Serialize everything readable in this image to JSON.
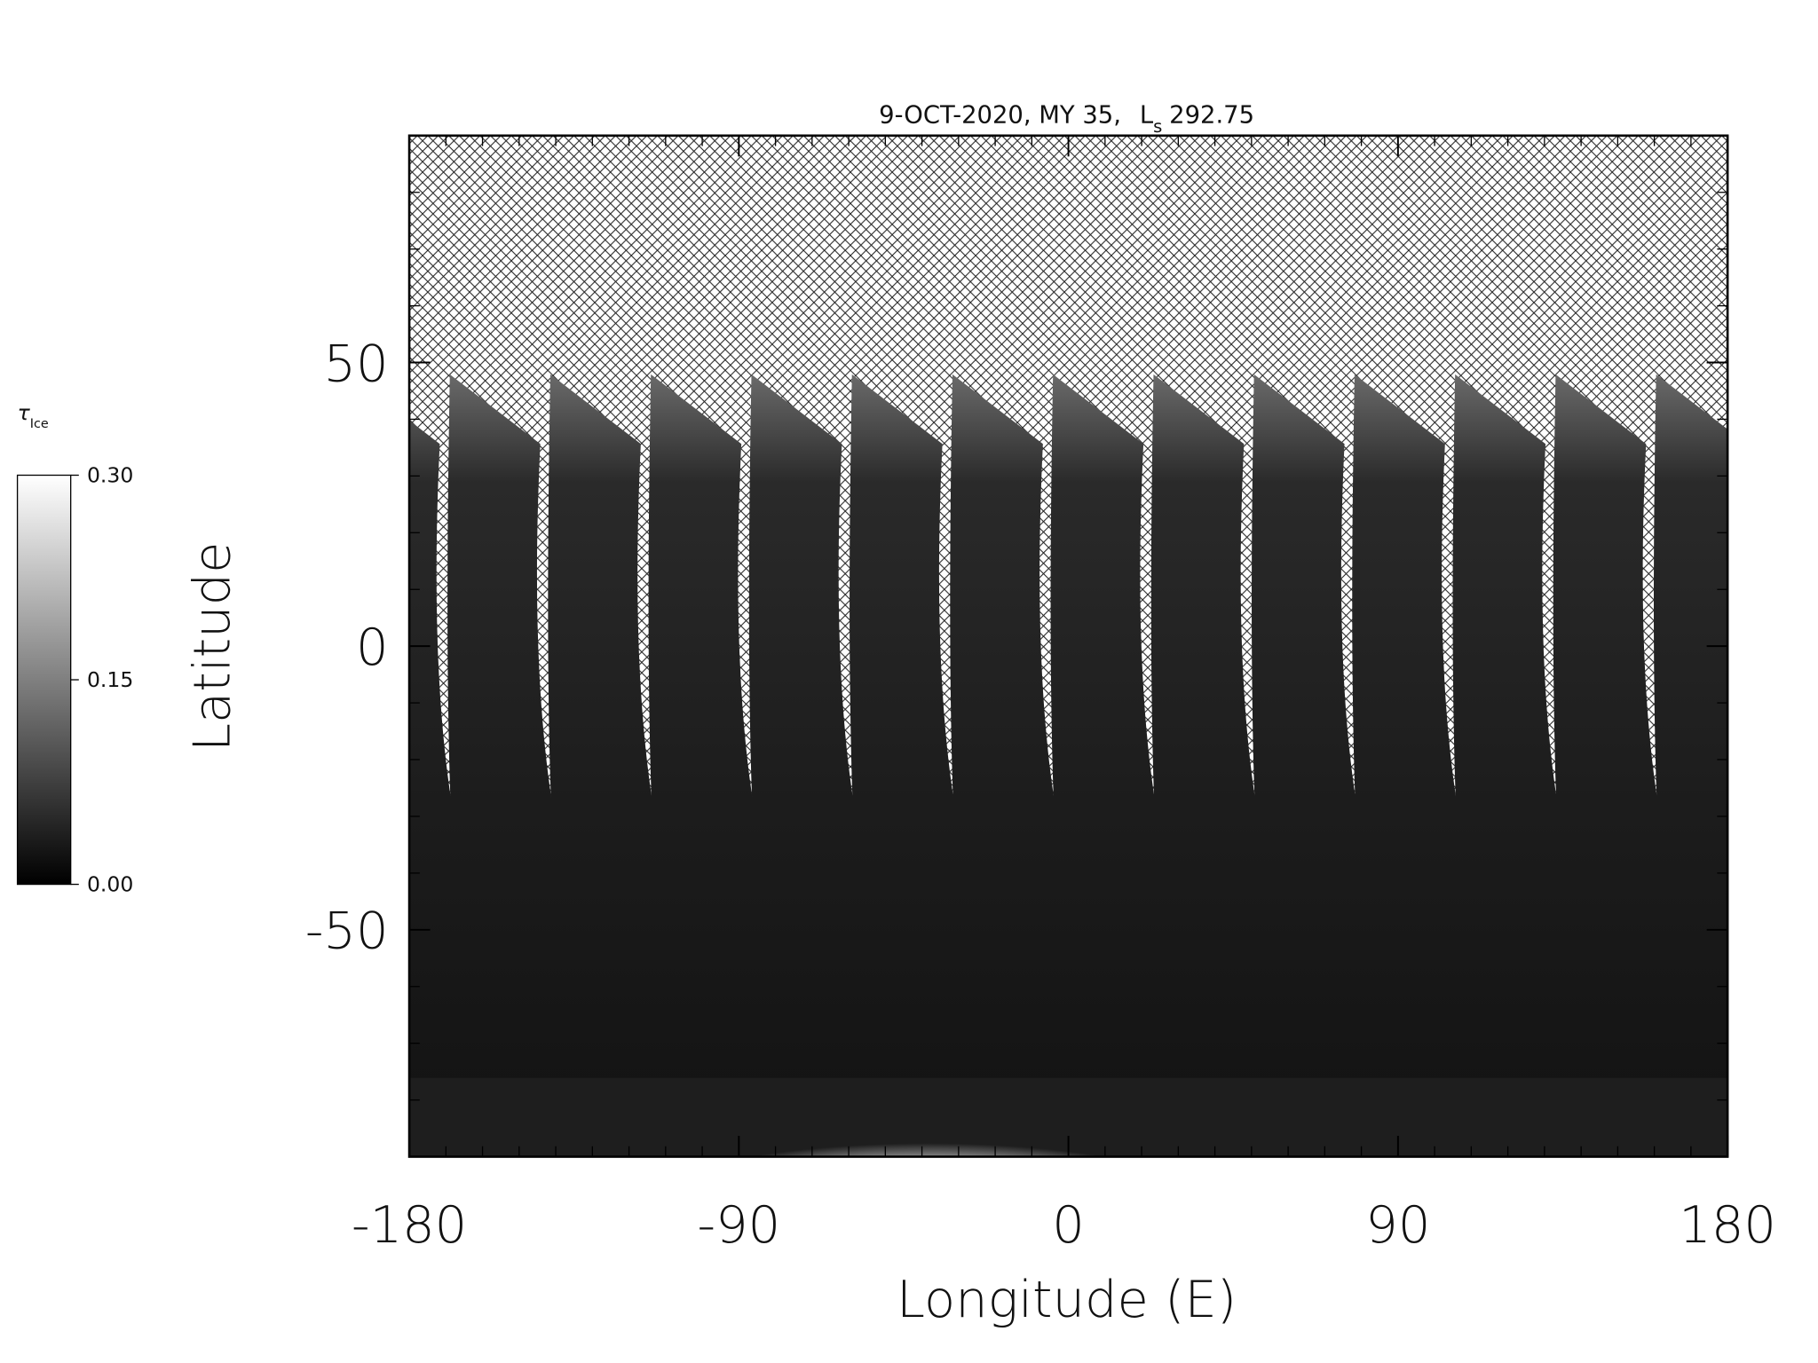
{
  "chart_data": {
    "type": "map",
    "title": "9-OCT-2020, MY 35,",
    "title_ls": "L",
    "title_ls_sub": "s",
    "title_ls_value": "292.75",
    "x_label": "Longitude (E)",
    "y_label": "Latitude",
    "xlim": [
      -180,
      180
    ],
    "xticks": [
      -180,
      -90,
      0,
      90,
      180
    ],
    "x_minor_ticks": [
      -170,
      -160,
      -150,
      -140,
      -130,
      -120,
      -110,
      -100,
      -80,
      -70,
      -60,
      -50,
      -40,
      -30,
      -20,
      -10,
      10,
      20,
      30,
      40,
      50,
      60,
      70,
      80,
      100,
      110,
      120,
      130,
      140,
      150,
      160,
      170
    ],
    "ylim": [
      -90,
      90
    ],
    "yticks": [
      -50,
      0,
      50
    ],
    "y_minor_ticks": [
      -80,
      -70,
      -60,
      -40,
      -30,
      -20,
      -10,
      10,
      20,
      30,
      40,
      60,
      70,
      80
    ],
    "colorbar": {
      "label": "τ",
      "label_sub": "Ice",
      "clim": [
        0,
        0.3
      ],
      "ticks": [
        {
          "value": 0,
          "label": "0.00"
        },
        {
          "value": 0.15,
          "label": "0.15"
        },
        {
          "value": 0.3,
          "label": "0.30"
        }
      ],
      "colors": [
        "#000000",
        "#ffffff"
      ]
    }
  }
}
